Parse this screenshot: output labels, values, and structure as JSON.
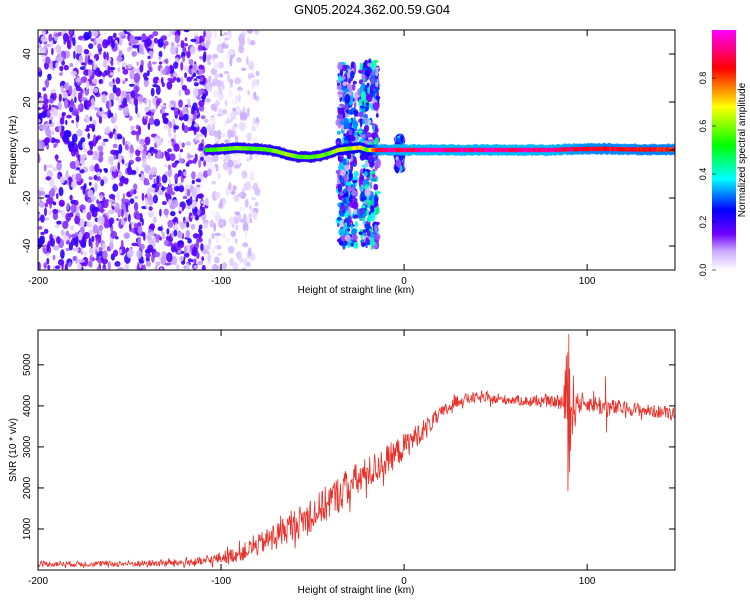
{
  "figure": {
    "title": "GN05.2024.362.00.59.G04"
  },
  "chart_data": [
    {
      "type": "heatmap",
      "xlabel": "Height of straight line (km)",
      "ylabel": "Frequency (Hz)",
      "xlim": [
        -200,
        148
      ],
      "ylim": [
        -50,
        50
      ],
      "x_ticks": [
        -200,
        -100,
        0,
        100
      ],
      "x_tick_labels": [
        "-200",
        "-100",
        "0",
        "100"
      ],
      "y_ticks": [
        -40,
        -20,
        0,
        20,
        40
      ],
      "y_tick_labels": [
        "-40",
        "-20",
        "0",
        "20",
        "40"
      ],
      "colorbar": {
        "label": "Normalized spectral amplitude",
        "range": [
          0,
          1
        ],
        "ticks": [
          0.0,
          0.2,
          0.4,
          0.6,
          0.8
        ],
        "tick_labels": [
          "0.0",
          "0.2",
          "0.4",
          "0.6",
          "0.8"
        ],
        "colormap": [
          "#ffffff",
          "#7000ff",
          "#0000ff",
          "#00ffff",
          "#00ff00",
          "#ffff00",
          "#ff0000",
          "#ff00ff"
        ]
      },
      "noise_region": {
        "x_range": [
          -200,
          -108
        ],
        "f_range": [
          -50,
          50
        ],
        "level": 0.12
      },
      "scattered_noise": {
        "x_range": [
          -108,
          -80
        ],
        "f_range": [
          -50,
          50
        ],
        "level": 0.05
      },
      "bursts": [
        {
          "x_range": [
            -36,
            -26
          ],
          "f_range": [
            -40,
            36
          ],
          "level": 0.22
        },
        {
          "x_range": [
            -24,
            -14
          ],
          "f_range": [
            -40,
            37
          ],
          "level": 0.25
        },
        {
          "x_range": [
            -4,
            -1
          ],
          "f_range": [
            -8,
            5
          ],
          "level": 0.2
        }
      ],
      "signal_track": {
        "x": [
          -108,
          -100,
          -92,
          -84,
          -76,
          -70,
          -64,
          -58,
          -52,
          -46,
          -40,
          -36,
          -30,
          -24,
          -20,
          -14,
          0,
          20,
          40,
          60,
          80,
          90,
          100,
          110,
          120,
          130,
          140,
          148
        ],
        "f": [
          0,
          0.3,
          0.8,
          0.6,
          0.3,
          -0.5,
          -1.8,
          -2.8,
          -3.0,
          -2.5,
          -1.2,
          0,
          0.6,
          1.0,
          0,
          0,
          0,
          0,
          0,
          0,
          0,
          0.3,
          0.4,
          0.5,
          0.3,
          0.2,
          0.2,
          0.2
        ],
        "amplitude": [
          0.55,
          0.6,
          0.65,
          0.6,
          0.6,
          0.62,
          0.65,
          0.6,
          0.62,
          0.6,
          0.62,
          0.7,
          0.65,
          0.75,
          0.6,
          0.95,
          0.98,
          0.98,
          0.98,
          0.98,
          0.98,
          0.95,
          0.92,
          0.9,
          0.92,
          0.9,
          0.9,
          0.9
        ]
      }
    },
    {
      "type": "line",
      "xlabel": "Height of straight line (km)",
      "ylabel": "SNR (10 * v/v)",
      "xlim": [
        -200,
        148
      ],
      "ylim": [
        0,
        5850
      ],
      "x_ticks": [
        -200,
        -100,
        0,
        100
      ],
      "x_tick_labels": [
        "-200",
        "-100",
        "0",
        "100"
      ],
      "y_ticks": [
        1000,
        2000,
        3000,
        4000,
        5000
      ],
      "y_tick_labels": [
        "1000",
        "2000",
        "3000",
        "4000",
        "5000"
      ],
      "series": [
        {
          "color": "#e8312a",
          "x": [
            -200,
            -180,
            -160,
            -140,
            -120,
            -110,
            -100,
            -90,
            -80,
            -70,
            -60,
            -50,
            -40,
            -30,
            -20,
            -10,
            0,
            10,
            20,
            30,
            40,
            50,
            60,
            70,
            80,
            85,
            88,
            90,
            92,
            95,
            100,
            105,
            110,
            120,
            130,
            140,
            148
          ],
          "y": [
            150,
            150,
            150,
            160,
            180,
            200,
            300,
            400,
            600,
            850,
            1100,
            1350,
            1700,
            2050,
            2350,
            2650,
            3000,
            3400,
            3800,
            4150,
            4200,
            4150,
            4150,
            4100,
            4100,
            4100,
            4000,
            4050,
            4000,
            4100,
            4050,
            4050,
            3950,
            3950,
            3900,
            3850,
            3850
          ],
          "noise": [
            70,
            70,
            70,
            80,
            90,
            110,
            150,
            200,
            260,
            320,
            380,
            420,
            450,
            460,
            420,
            380,
            330,
            260,
            180,
            150,
            130,
            120,
            120,
            120,
            130,
            150,
            600,
            1600,
            900,
            200,
            180,
            250,
            250,
            170,
            160,
            160,
            160
          ],
          "spikes": [
            {
              "x": 90,
              "y": 5750
            },
            {
              "x": 90.4,
              "y": 2380
            },
            {
              "x": 89.4,
              "y": 5300
            },
            {
              "x": 91,
              "y": 2900
            },
            {
              "x": 110,
              "y": 4720
            },
            {
              "x": 110.6,
              "y": 3350
            }
          ]
        }
      ]
    }
  ]
}
